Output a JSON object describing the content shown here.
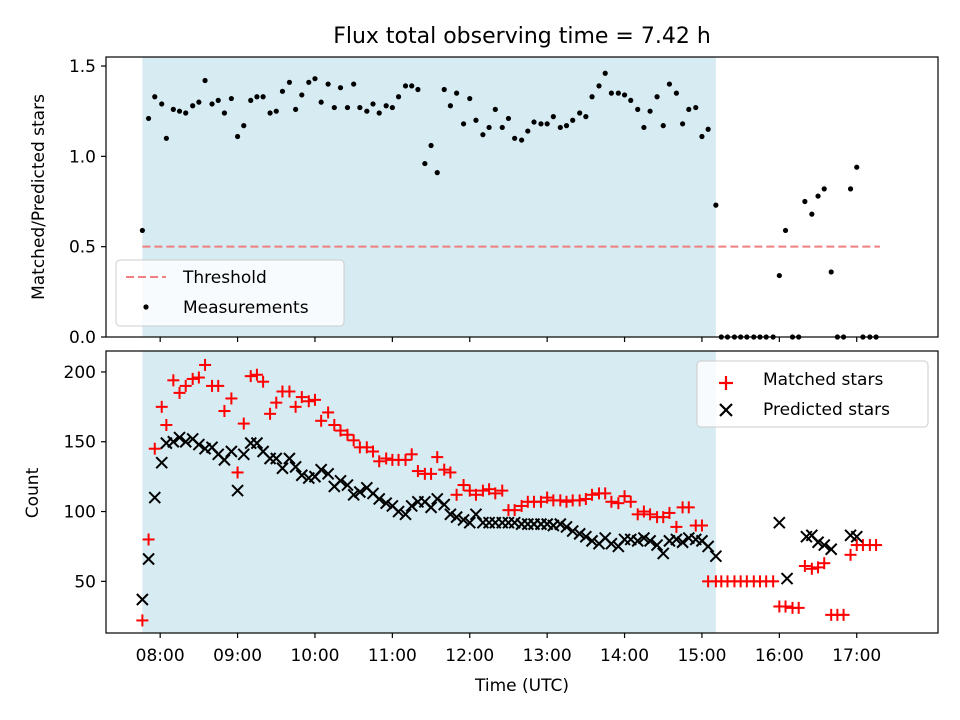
{
  "chart_data": [
    {
      "type": "scatter",
      "title": "Flux total observing time = 7.42 h",
      "xlabel": "",
      "ylabel": "Matched/Predicted stars",
      "ylim": [
        0,
        1.55
      ],
      "yticks": [
        "0.0",
        "0.5",
        "1.0",
        "1.5"
      ],
      "ytick_values": [
        0,
        0.5,
        1.0,
        1.5
      ],
      "xlim_hours": [
        7.3,
        18.05
      ],
      "shaded_interval_hours": [
        7.77,
        15.18
      ],
      "threshold": {
        "name": "Threshold",
        "value": 0.5,
        "x_range_hours": [
          7.77,
          17.3
        ],
        "color": "#f07f7f"
      },
      "legend": {
        "position": "lower-left",
        "entries": [
          "Threshold",
          "Measurements"
        ]
      },
      "series": [
        {
          "name": "Measurements",
          "color": "#000000",
          "x_hours": [
            7.77,
            7.85,
            7.93,
            8.02,
            8.08,
            8.17,
            8.25,
            8.33,
            8.42,
            8.5,
            8.58,
            8.67,
            8.75,
            8.83,
            8.92,
            9.0,
            9.08,
            9.17,
            9.25,
            9.33,
            9.42,
            9.5,
            9.58,
            9.67,
            9.75,
            9.83,
            9.92,
            10.0,
            10.08,
            10.17,
            10.25,
            10.33,
            10.42,
            10.5,
            10.58,
            10.67,
            10.75,
            10.83,
            10.92,
            11.0,
            11.08,
            11.17,
            11.25,
            11.33,
            11.42,
            11.5,
            11.58,
            11.67,
            11.75,
            11.83,
            11.92,
            12.0,
            12.08,
            12.17,
            12.25,
            12.33,
            12.42,
            12.5,
            12.58,
            12.67,
            12.75,
            12.83,
            12.92,
            13.0,
            13.08,
            13.17,
            13.25,
            13.33,
            13.42,
            13.5,
            13.58,
            13.67,
            13.75,
            13.83,
            13.92,
            14.0,
            14.08,
            14.17,
            14.25,
            14.33,
            14.42,
            14.5,
            14.58,
            14.67,
            14.75,
            14.83,
            14.92,
            15.0,
            15.08,
            15.18,
            15.25,
            15.33,
            15.42,
            15.5,
            15.58,
            15.67,
            15.75,
            15.83,
            15.92,
            16.0,
            16.08,
            16.17,
            16.25,
            16.33,
            16.42,
            16.5,
            16.58,
            16.67,
            16.75,
            16.83,
            16.92,
            17.0,
            17.08,
            17.17,
            17.25
          ],
          "y": [
            0.59,
            1.21,
            1.33,
            1.29,
            1.1,
            1.26,
            1.25,
            1.24,
            1.28,
            1.3,
            1.42,
            1.29,
            1.31,
            1.24,
            1.32,
            1.11,
            1.17,
            1.31,
            1.33,
            1.33,
            1.24,
            1.25,
            1.36,
            1.41,
            1.26,
            1.34,
            1.41,
            1.43,
            1.3,
            1.4,
            1.27,
            1.38,
            1.27,
            1.4,
            1.27,
            1.25,
            1.29,
            1.24,
            1.28,
            1.27,
            1.33,
            1.39,
            1.39,
            1.37,
            0.96,
            1.06,
            0.91,
            1.37,
            1.28,
            1.35,
            1.18,
            1.32,
            1.2,
            1.12,
            1.16,
            1.26,
            1.16,
            1.21,
            1.1,
            1.09,
            1.14,
            1.19,
            1.18,
            1.18,
            1.22,
            1.16,
            1.17,
            1.2,
            1.24,
            1.22,
            1.33,
            1.39,
            1.46,
            1.35,
            1.35,
            1.34,
            1.31,
            1.26,
            1.16,
            1.25,
            1.33,
            1.17,
            1.4,
            1.35,
            1.18,
            1.26,
            1.27,
            1.11,
            1.15,
            0.73,
            0,
            0,
            0,
            0,
            0,
            0,
            0,
            0,
            0,
            0.34,
            0.59,
            0,
            0,
            0.75,
            0.68,
            0.78,
            0.82,
            0.36,
            0,
            0,
            0.82,
            0.94,
            0,
            0,
            0
          ]
        }
      ]
    },
    {
      "type": "scatter",
      "title": "",
      "xlabel": "Time (UTC)",
      "ylabel": "Count",
      "ylim": [
        13,
        215
      ],
      "yticks": [
        "50",
        "100",
        "150",
        "200"
      ],
      "ytick_values": [
        50,
        100,
        150,
        200
      ],
      "xticks": [
        "08:00",
        "09:00",
        "10:00",
        "11:00",
        "12:00",
        "13:00",
        "14:00",
        "15:00",
        "16:00",
        "17:00"
      ],
      "xtick_hours": [
        8,
        9,
        10,
        11,
        12,
        13,
        14,
        15,
        16,
        17
      ],
      "legend": {
        "position": "top-right",
        "entries": [
          "Matched stars",
          "Predicted stars"
        ]
      },
      "series": [
        {
          "name": "Matched stars",
          "color": "#ff0000",
          "marker": "+",
          "x_hours": [
            7.77,
            7.85,
            7.93,
            8.02,
            8.08,
            8.17,
            8.25,
            8.33,
            8.42,
            8.5,
            8.58,
            8.67,
            8.75,
            8.83,
            8.92,
            9.0,
            9.08,
            9.17,
            9.25,
            9.33,
            9.42,
            9.5,
            9.58,
            9.67,
            9.75,
            9.83,
            9.92,
            10.0,
            10.08,
            10.17,
            10.25,
            10.33,
            10.42,
            10.5,
            10.58,
            10.67,
            10.75,
            10.83,
            10.92,
            11.0,
            11.08,
            11.17,
            11.25,
            11.33,
            11.42,
            11.5,
            11.58,
            11.67,
            11.75,
            11.83,
            11.92,
            12.0,
            12.08,
            12.17,
            12.25,
            12.33,
            12.42,
            12.5,
            12.58,
            12.67,
            12.75,
            12.83,
            12.92,
            13.0,
            13.08,
            13.17,
            13.25,
            13.33,
            13.42,
            13.5,
            13.58,
            13.67,
            13.75,
            13.83,
            13.92,
            14.0,
            14.08,
            14.17,
            14.25,
            14.33,
            14.42,
            14.5,
            14.58,
            14.67,
            14.75,
            14.83,
            14.92,
            15.0,
            15.08,
            15.18,
            15.25,
            15.33,
            15.42,
            15.5,
            15.58,
            15.67,
            15.75,
            15.83,
            15.92,
            16.0,
            16.08,
            16.17,
            16.25,
            16.33,
            16.42,
            16.5,
            16.58,
            16.67,
            16.75,
            16.83,
            16.92,
            17.0,
            17.08,
            17.17,
            17.25
          ],
          "y": [
            22,
            80,
            145,
            175,
            162,
            194,
            185,
            190,
            195,
            196,
            205,
            190,
            190,
            172,
            181,
            128,
            163,
            197,
            198,
            193,
            170,
            178,
            186,
            186,
            175,
            182,
            179,
            180,
            165,
            171,
            162,
            158,
            155,
            151,
            146,
            146,
            143,
            136,
            138,
            137,
            137,
            137,
            141,
            129,
            127,
            127,
            139,
            130,
            128,
            112,
            119,
            115,
            112,
            115,
            116,
            113,
            115,
            101,
            101,
            104,
            107,
            107,
            107,
            110,
            108,
            108,
            107,
            108,
            108,
            109,
            112,
            113,
            113,
            107,
            106,
            111,
            107,
            98,
            100,
            98,
            96,
            96,
            99,
            89,
            103,
            103,
            90,
            90,
            50,
            50,
            50,
            50,
            50,
            50,
            50,
            50,
            50,
            50,
            50,
            32,
            32,
            31,
            31,
            61,
            59,
            60,
            63,
            26,
            26,
            26,
            69,
            76,
            76,
            76,
            76
          ]
        },
        {
          "name": "Predicted stars",
          "color": "#000000",
          "marker": "x",
          "x_hours": [
            7.77,
            7.85,
            7.93,
            8.02,
            8.08,
            8.17,
            8.25,
            8.33,
            8.42,
            8.5,
            8.58,
            8.67,
            8.75,
            8.83,
            8.92,
            9.0,
            9.08,
            9.17,
            9.25,
            9.33,
            9.42,
            9.5,
            9.58,
            9.67,
            9.75,
            9.83,
            9.92,
            10.0,
            10.08,
            10.17,
            10.25,
            10.33,
            10.42,
            10.5,
            10.58,
            10.67,
            10.75,
            10.83,
            10.92,
            11.0,
            11.08,
            11.17,
            11.25,
            11.33,
            11.42,
            11.5,
            11.58,
            11.67,
            11.75,
            11.83,
            11.92,
            12.0,
            12.08,
            12.17,
            12.25,
            12.33,
            12.42,
            12.5,
            12.58,
            12.67,
            12.75,
            12.83,
            12.92,
            13.0,
            13.08,
            13.17,
            13.25,
            13.33,
            13.42,
            13.5,
            13.58,
            13.67,
            13.75,
            13.83,
            13.92,
            14.0,
            14.08,
            14.17,
            14.25,
            14.33,
            14.42,
            14.5,
            14.58,
            14.67,
            14.75,
            14.83,
            14.92,
            15.0,
            15.08,
            15.18,
            16.0,
            16.1,
            16.35,
            16.42,
            16.5,
            16.58,
            16.67,
            16.92,
            17.0
          ],
          "y": [
            37,
            66,
            110,
            135,
            149,
            150,
            153,
            150,
            152,
            148,
            145,
            146,
            141,
            137,
            143,
            115,
            141,
            149,
            149,
            143,
            138,
            138,
            131,
            138,
            132,
            126,
            124,
            125,
            130,
            127,
            118,
            122,
            119,
            112,
            114,
            117,
            113,
            109,
            106,
            104,
            100,
            98,
            104,
            107,
            107,
            103,
            109,
            105,
            98,
            96,
            94,
            92,
            98,
            92,
            92,
            92,
            92,
            92,
            92,
            91,
            91,
            91,
            91,
            91,
            90,
            91,
            89,
            86,
            84,
            82,
            79,
            77,
            81,
            77,
            75,
            80,
            80,
            79,
            81,
            79,
            76,
            70,
            79,
            80,
            78,
            81,
            80,
            79,
            75,
            68,
            92,
            52,
            82,
            83,
            78,
            76,
            73,
            83,
            82
          ]
        }
      ]
    }
  ]
}
